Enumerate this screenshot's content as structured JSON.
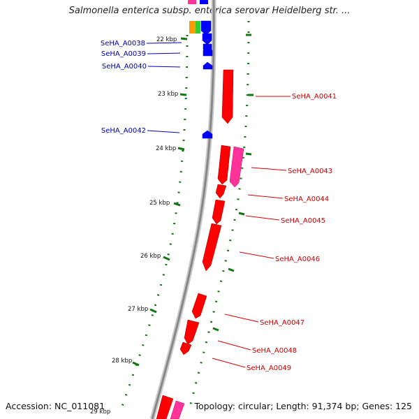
{
  "title": "Salmonella enterica subsp. enterica serovar Heidelberg str. ...",
  "accession": "Accession: NC_011081",
  "topology": "Topology: circular; Length: 91,374 bp; Genes: 125",
  "colors": {
    "forward_gene": "#ff0000",
    "reverse_gene": "#0000ff",
    "forward_label": "#cc0000",
    "reverse_label": "#0000aa",
    "tick": "#117711",
    "backbone": "#888888",
    "cog_pink": "#ff3399",
    "cog_green": "#33cc33",
    "cog_orange": "#ff9900"
  },
  "ticks": [
    {
      "label": "22 kbp"
    },
    {
      "label": "23 kbp"
    },
    {
      "label": "24 kbp"
    },
    {
      "label": "25 kbp"
    },
    {
      "label": "26 kbp"
    },
    {
      "label": "27 kbp"
    },
    {
      "label": "28 kbp"
    },
    {
      "label": "29 kbp"
    }
  ],
  "gene_labels": [
    {
      "name": "SeHA_A0038",
      "strand": "reverse"
    },
    {
      "name": "SeHA_A0039",
      "strand": "reverse"
    },
    {
      "name": "SeHA_A0040",
      "strand": "reverse"
    },
    {
      "name": "SeHA_A0041",
      "strand": "forward"
    },
    {
      "name": "SeHA_A0042",
      "strand": "reverse"
    },
    {
      "name": "SeHA_A0043",
      "strand": "forward"
    },
    {
      "name": "SeHA_A0044",
      "strand": "forward"
    },
    {
      "name": "SeHA_A0045",
      "strand": "forward"
    },
    {
      "name": "SeHA_A0046",
      "strand": "forward"
    },
    {
      "name": "SeHA_A0047",
      "strand": "forward"
    },
    {
      "name": "SeHA_A0048",
      "strand": "forward"
    },
    {
      "name": "SeHA_A0049",
      "strand": "forward"
    }
  ]
}
